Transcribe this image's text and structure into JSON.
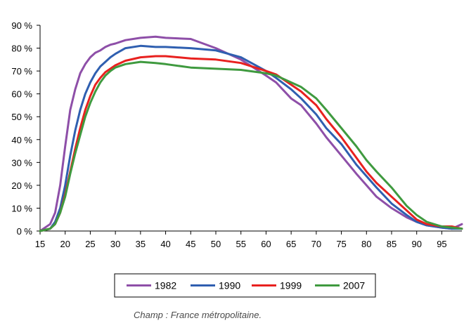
{
  "chart_data": {
    "type": "line",
    "title": "",
    "xlabel": "",
    "ylabel": "",
    "xlim": [
      15,
      99
    ],
    "ylim": [
      0,
      90
    ],
    "x_ticks": [
      15,
      20,
      25,
      30,
      35,
      40,
      45,
      50,
      55,
      60,
      65,
      70,
      75,
      80,
      85,
      90,
      95
    ],
    "y_ticks": [
      0,
      10,
      20,
      30,
      40,
      50,
      60,
      70,
      80,
      90
    ],
    "y_tick_labels": [
      "0 %",
      "10 %",
      "20 %",
      "30 %",
      "40 %",
      "50 %",
      "60 %",
      "70 %",
      "80 %",
      "90 %"
    ],
    "grid": false,
    "legend_position": "bottom",
    "x": [
      15,
      17,
      18,
      19,
      20,
      21,
      22,
      23,
      24,
      25,
      26,
      27,
      28,
      29,
      30,
      32,
      35,
      38,
      40,
      45,
      50,
      55,
      60,
      62,
      65,
      67,
      70,
      72,
      75,
      78,
      80,
      82,
      85,
      88,
      90,
      92,
      95,
      97,
      99
    ],
    "series": [
      {
        "name": "1982",
        "color": "#8e4fa8",
        "values": [
          0,
          3,
          8,
          20,
          37,
          53,
          62,
          69,
          73,
          76,
          78,
          79,
          80.5,
          81.5,
          82,
          83.5,
          84.5,
          85,
          84.5,
          84,
          80,
          75,
          68,
          65,
          58,
          55,
          47,
          41,
          33,
          25,
          20,
          15,
          10,
          6,
          4,
          2.5,
          1.5,
          1,
          3
        ]
      },
      {
        "name": "1990",
        "color": "#2f5fb0",
        "values": [
          0,
          1,
          4,
          10,
          20,
          33,
          44,
          53,
          60,
          65,
          69,
          72,
          74,
          76,
          77.5,
          80,
          81,
          80.5,
          80.5,
          80,
          79,
          76,
          70,
          67,
          62,
          58,
          51,
          45,
          38,
          29,
          24,
          19,
          12,
          7,
          4,
          2.5,
          1.5,
          1,
          1
        ]
      },
      {
        "name": "1999",
        "color": "#e8211f",
        "values": [
          0,
          1,
          3,
          8,
          16,
          26,
          36,
          45,
          53,
          59,
          64,
          67,
          69.5,
          71,
          72.5,
          74.5,
          76,
          76.5,
          76.5,
          75.5,
          75,
          73.5,
          70,
          68.5,
          64,
          61,
          55,
          49,
          41,
          32,
          26,
          21,
          15,
          9,
          5,
          3,
          2,
          2,
          1
        ]
      },
      {
        "name": "2007",
        "color": "#3f9a3f",
        "values": [
          0,
          1,
          3,
          8,
          15,
          25,
          34,
          42,
          50,
          56,
          61,
          65,
          68,
          70,
          71.5,
          73,
          74,
          73.5,
          73,
          71.5,
          71,
          70.5,
          69,
          68,
          65,
          63,
          58,
          53,
          45,
          37,
          31,
          26,
          19,
          11,
          7,
          4,
          2,
          1.5,
          1
        ]
      }
    ]
  },
  "footnote": "Champ : France métropolitaine."
}
